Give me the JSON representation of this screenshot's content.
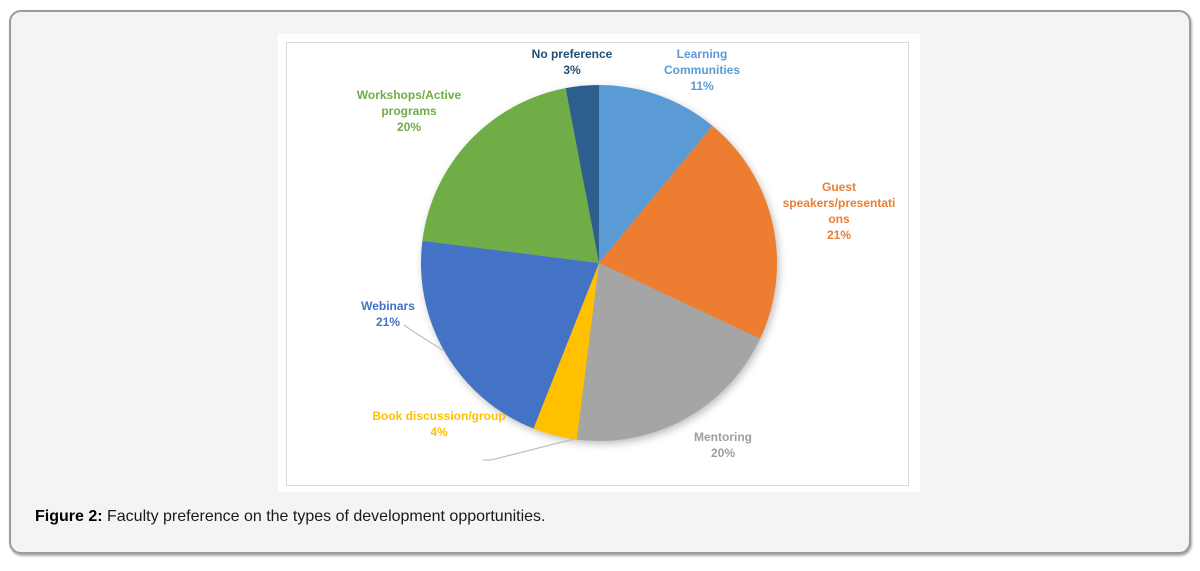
{
  "figure": {
    "label": "Figure 2:",
    "caption": " Faculty preference on the types of development opportunities."
  },
  "chart_data": {
    "type": "pie",
    "title": "",
    "start_angle_deg": 0,
    "direction": "clockwise",
    "legend": "none",
    "total": 100,
    "slices": [
      {
        "label": "Learning Communities",
        "value": 11,
        "color": "#5B9BD5",
        "label_color": "#5B9BD5",
        "label_text": "Learning\nCommunities\n11%"
      },
      {
        "label": "Guest speakers/presentations",
        "value": 21,
        "color": "#ED7D31",
        "label_color": "#ED7D31",
        "label_text": "Guest\nspeakers/presentati\nons\n21%"
      },
      {
        "label": "Mentoring",
        "value": 20,
        "color": "#A5A5A5",
        "label_color": "#9E9E9E",
        "label_text": "Mentoring\n20%"
      },
      {
        "label": "Book discussion/group",
        "value": 4,
        "color": "#FFC000",
        "label_color": "#FFC000",
        "label_text": "Book discussion/group\n4%"
      },
      {
        "label": "Webinars",
        "value": 21,
        "color": "#4472C4",
        "label_color": "#4472C4",
        "label_text": "Webinars\n21%"
      },
      {
        "label": "Workshops/Active programs",
        "value": 20,
        "color": "#70AD47",
        "label_color": "#70AD47",
        "label_text": "Workshops/Active\nprograms\n20%"
      },
      {
        "label": "No preference",
        "value": 3,
        "color": "#2D5F8E",
        "label_color": "#1F4E79",
        "label_text": "No preference\n3%"
      }
    ],
    "leader_line_color": "#BFBFBF"
  }
}
